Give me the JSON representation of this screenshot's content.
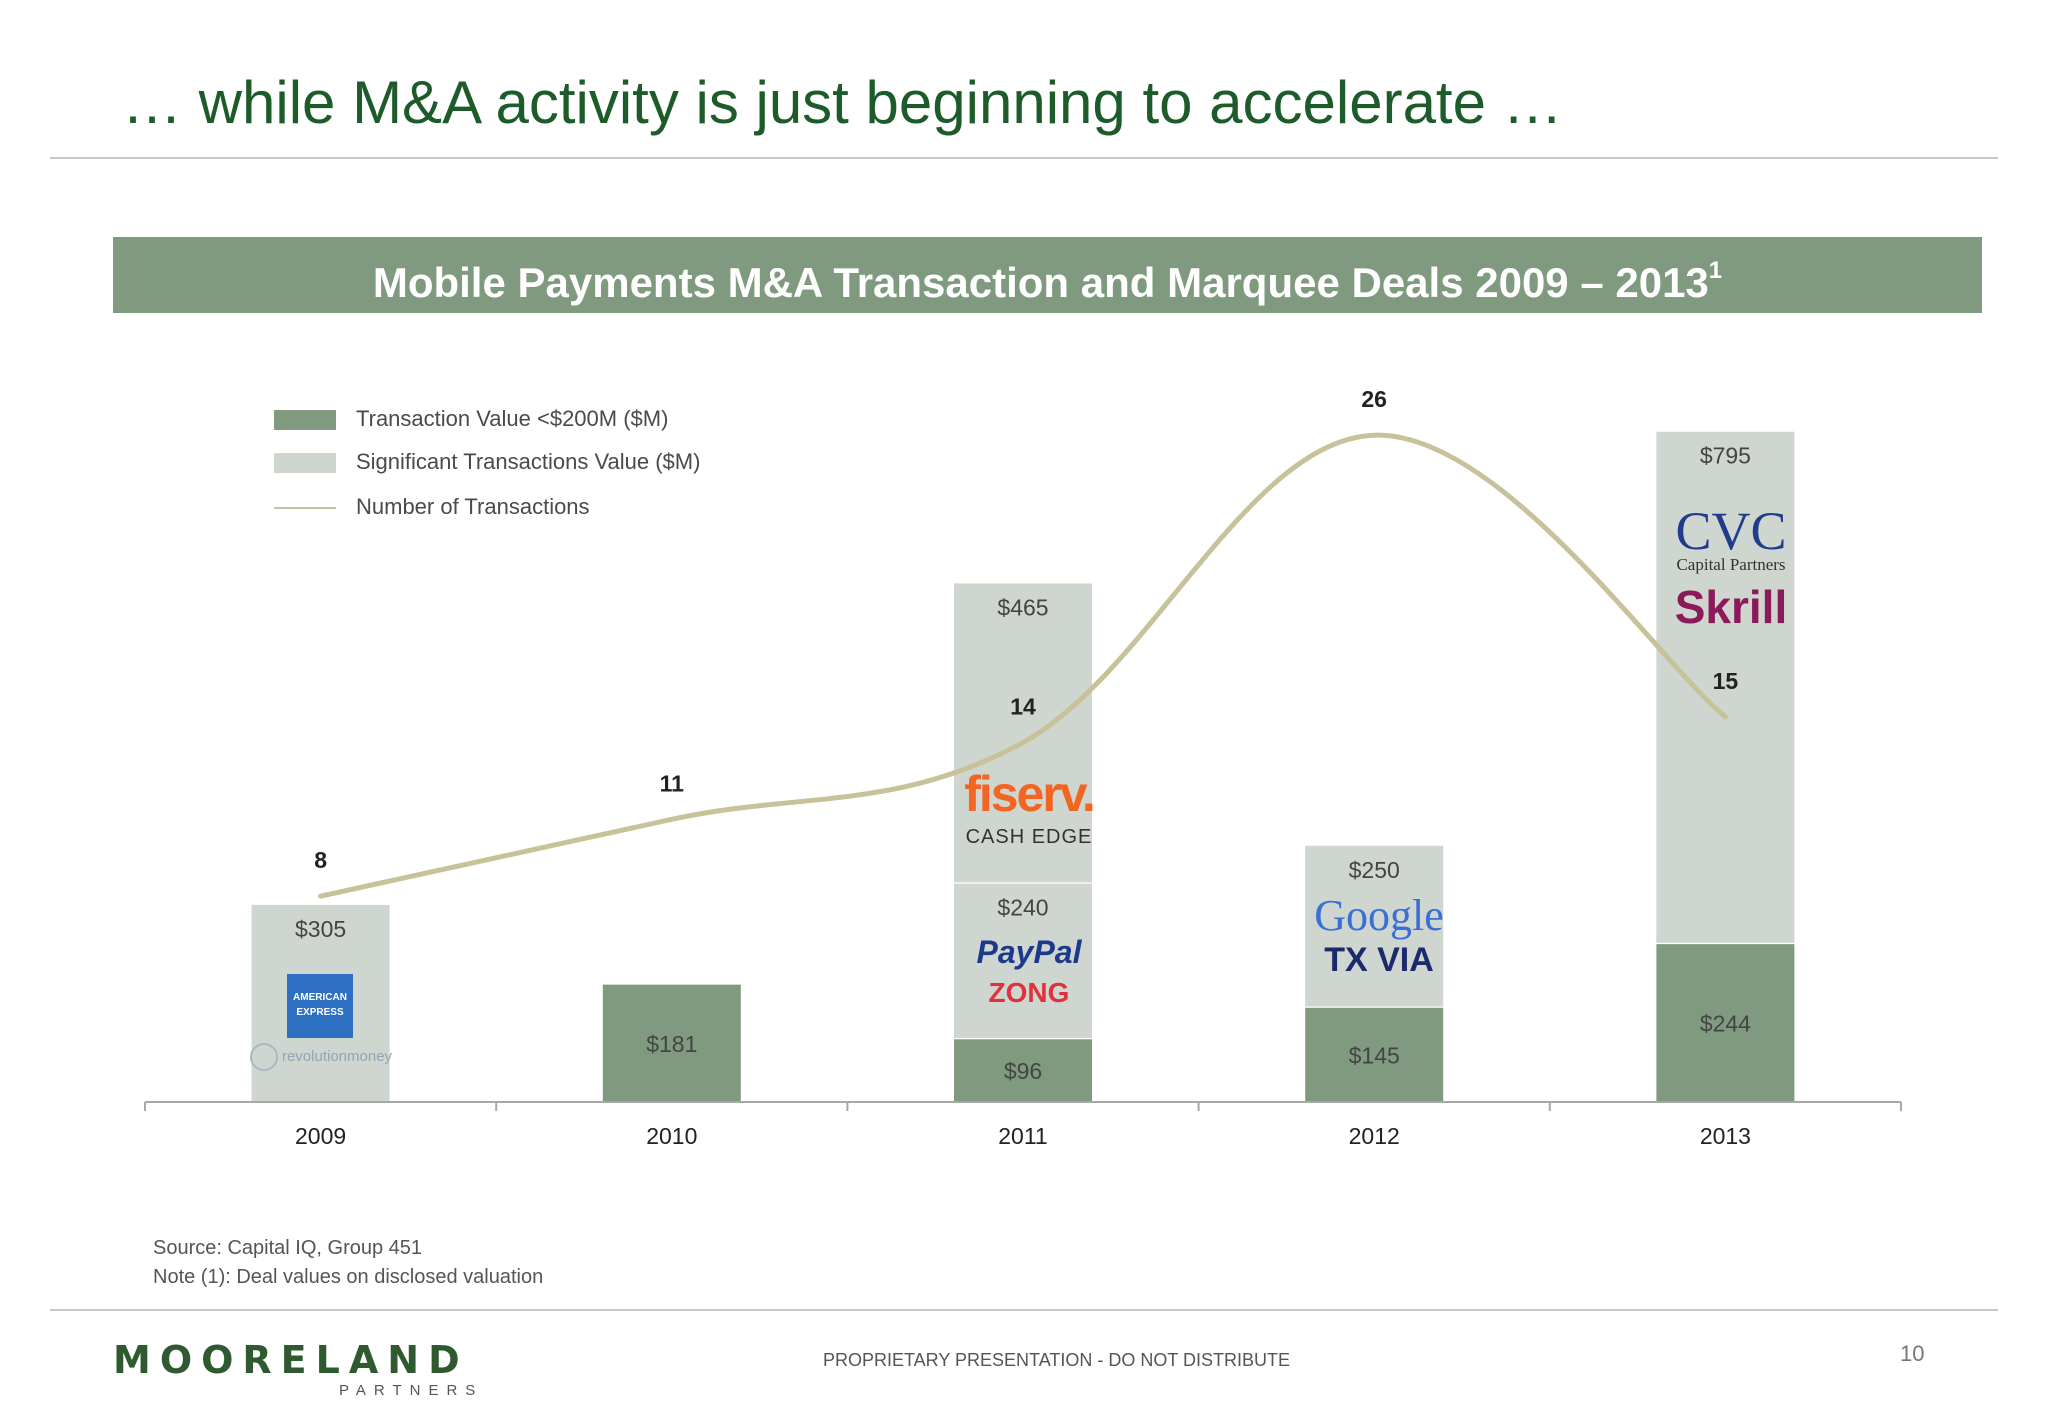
{
  "page": {
    "title": "… while M&A activity is just beginning to accelerate …",
    "banner_title": "Mobile Payments M&A Transaction and Marquee Deals 2009 – 2013",
    "banner_superscript": "1",
    "source": "Source: Capital IQ, Group 451",
    "note": "Note (1): Deal values  on  disclosed valuation",
    "footer_brand": "MOORELAND",
    "footer_brand_sub": "PARTNERS",
    "footer_note": "PROPRIETARY PRESENTATION - DO NOT DISTRIBUTE",
    "page_number": "10"
  },
  "colors": {
    "dark_bar": "#7f9a7f",
    "light_bar": "#cfd5cf",
    "line": "#c8c29a",
    "title": "#1d5c2a"
  },
  "chart_data": {
    "type": "bar",
    "title": "Mobile Payments M&A Transaction and Marquee Deals 2009 – 2013",
    "categories": [
      "2009",
      "2010",
      "2011",
      "2012",
      "2013"
    ],
    "series": [
      {
        "name": "Transaction Value <$200M ($M)",
        "values": [
          0,
          181,
          96,
          145,
          244
        ],
        "labels": [
          "",
          "$181",
          "$96",
          "$145",
          "$244"
        ]
      },
      {
        "name": "Significant Transactions Value ($M)",
        "segments": [
          [
            {
              "value": 305,
              "label": "$305"
            }
          ],
          [],
          [
            {
              "value": 240,
              "label": "$240"
            },
            {
              "value": 465,
              "label": "$465"
            }
          ],
          [
            {
              "value": 250,
              "label": "$250"
            }
          ],
          [
            {
              "value": 795,
              "label": "$795"
            }
          ]
        ]
      },
      {
        "name": "Number of Transactions",
        "type": "line",
        "values": [
          8,
          11,
          14,
          26,
          15
        ]
      }
    ],
    "legend": [
      {
        "label": "Transaction Value <$200M ($M)",
        "kind": "dark"
      },
      {
        "label": "Significant Transactions Value ($M)",
        "kind": "light"
      },
      {
        "label": "Number of Transactions",
        "kind": "line"
      }
    ],
    "legend_position": "top-left",
    "ylim": [
      0,
      1040
    ],
    "line_ylim": [
      0,
      30
    ]
  },
  "logos": {
    "amex_line1": "AMERICAN",
    "amex_line2": "EXPRESS",
    "revolution_money": "revolutionmoney",
    "fiserv": "fiserv.",
    "cashedge": "CASH EDGE",
    "paypal": "PayPal",
    "zong": "ZONG",
    "google": "Google",
    "txvia": "TX VIA",
    "cvc": "CVC",
    "cvc_sub": "Capital Partners",
    "skrill": "Skrill"
  }
}
